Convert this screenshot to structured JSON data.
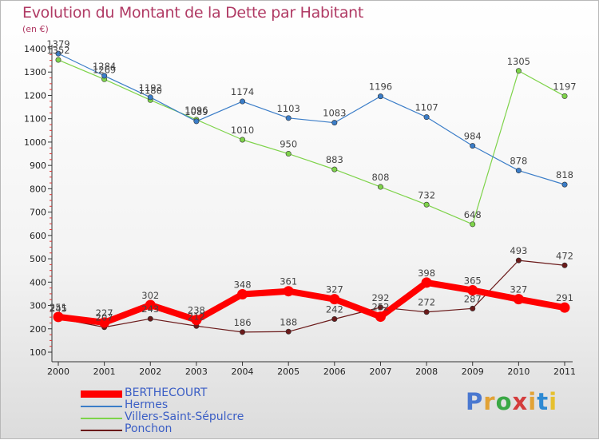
{
  "title": "Evolution du Montant de la Dette par Habitant",
  "subtitle": "(en €)",
  "logo": {
    "text": "Proxiti",
    "colors": [
      "#4a78d0",
      "#e2a235",
      "#3aa845",
      "#d43c3c",
      "#e2a235",
      "#2e8ad3",
      "#e6c02e"
    ]
  },
  "chart_data": {
    "type": "line",
    "x": [
      "2000",
      "2001",
      "2002",
      "2003",
      "2004",
      "2005",
      "2006",
      "2007",
      "2008",
      "2009",
      "2010",
      "2011"
    ],
    "ylim": [
      100,
      1400
    ],
    "yticks": [
      100,
      200,
      300,
      400,
      500,
      600,
      700,
      800,
      900,
      1000,
      1100,
      1200,
      1300,
      1400
    ],
    "grid": false,
    "legend_position": "bottom-left",
    "series": [
      {
        "name": "BERTHECOURT",
        "color": "#ff0000",
        "values": [
          251,
          227,
          302,
          238,
          348,
          361,
          327,
          252,
          398,
          365,
          327,
          291
        ],
        "labels": [
          "251",
          "227",
          "302",
          "238",
          "348",
          "361",
          "327",
          "252",
          "398",
          "365",
          "327",
          "291"
        ]
      },
      {
        "name": "Hermes",
        "color": "#3b7dc8",
        "values": [
          1379,
          1284,
          1192,
          1089,
          1174,
          1103,
          1083,
          1196,
          1107,
          984,
          878,
          818
        ],
        "labels": [
          "1379",
          "1284",
          "1192",
          "1089",
          "1174",
          "1103",
          "1083",
          "1196",
          "1107",
          "984",
          "878",
          "818"
        ]
      },
      {
        "name": "Villers-Saint-Sépulcre",
        "color": "#7ed34a",
        "values": [
          1352,
          1269,
          1180,
          1096,
          1010,
          950,
          883,
          808,
          732,
          648,
          1305,
          1197
        ],
        "labels": [
          "1352",
          "1269",
          "1180",
          "1096",
          "1010",
          "950",
          "883",
          "808",
          "732",
          "648",
          "1305",
          "1197"
        ]
      },
      {
        "name": "Ponchon",
        "color": "#6b1a1a",
        "values": [
          245,
          207,
          243,
          212,
          186,
          188,
          242,
          292,
          272,
          287,
          493,
          472
        ],
        "labels": [
          "245",
          "207",
          "243",
          "212",
          "186",
          "188",
          "242",
          "292",
          "272",
          "287",
          "493",
          "472"
        ]
      }
    ]
  }
}
